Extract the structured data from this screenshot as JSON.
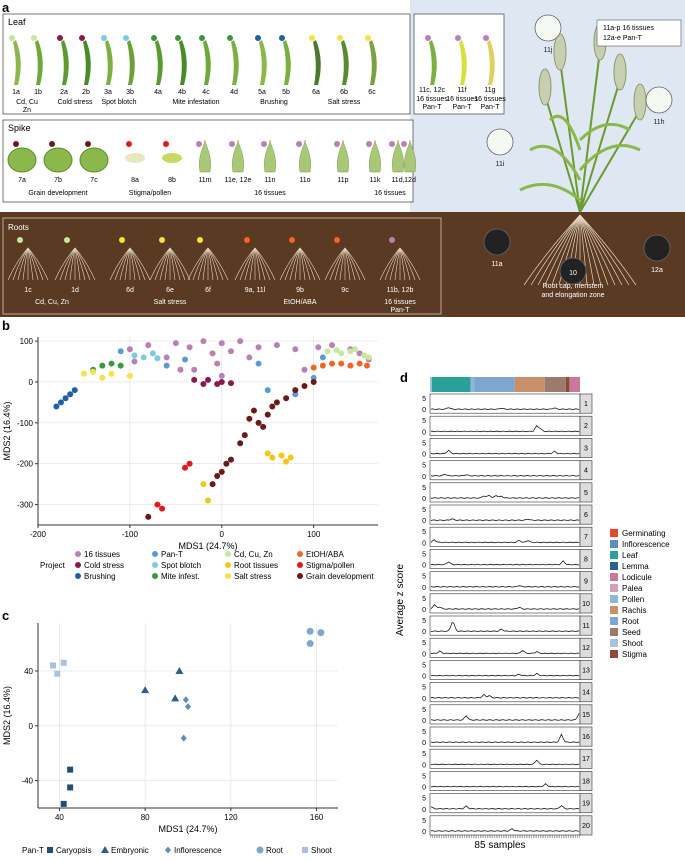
{
  "panel_a": {
    "letter": "a",
    "leaf": {
      "title": "Leaf",
      "sample_ids": [
        "1a",
        "1b",
        "2a",
        "2b",
        "3a",
        "3b",
        "4a",
        "4b",
        "4c",
        "4d",
        "5a",
        "5b",
        "6a",
        "6b",
        "6c"
      ],
      "groups": [
        "Cd, Cu\nZn",
        "Cold stress",
        "Spot blotch",
        "Mite infestation",
        "Brushing",
        "Salt stress"
      ],
      "pan_ids": [
        "11c, 12c",
        "11f",
        "11g"
      ],
      "pan_label": "16 tissues\nPan-T"
    },
    "spike": {
      "title": "Spike",
      "sample_ids": [
        "7a",
        "7b",
        "7c",
        "8a",
        "8b",
        "11m",
        "11e, 12e",
        "11n",
        "11o",
        "11p",
        "11k",
        "11d,",
        "12d"
      ],
      "groups": [
        "Grain development",
        "Stigma/pollen",
        "16 tissues",
        "16 tissues"
      ]
    },
    "roots": {
      "title": "Roots",
      "sample_ids": [
        "1c",
        "1d",
        "6d",
        "6e",
        "6f",
        "9a, 11l",
        "9b",
        "9c",
        "11b, 12b"
      ],
      "groups": [
        "Cd, Cu, Zn",
        "Salt stress",
        "EtOH/ABA",
        "16 tissues\nPan-T"
      ]
    },
    "plant": {
      "legend_lines": [
        "11a-p 16 tissues",
        "12a-e Pan-T"
      ],
      "ids": [
        "11j",
        "11h",
        "11i",
        "11a",
        "12a",
        "10"
      ],
      "zone": "Root cap, meristem\nand elongation zone"
    }
  },
  "panel_b": {
    "letter": "b",
    "legend_title": "Project",
    "legend": [
      "16 tissues",
      "Pan-T",
      "Cd, Cu, Zn",
      "EtOH/ABA",
      "Cold stress",
      "Spot blotch",
      "Root tissues",
      "Stigma/pollen",
      "Brushing",
      "Mite infest.",
      "Salt stress",
      "Grain development"
    ]
  },
  "panel_c": {
    "letter": "c",
    "legend_title": "Pan-T",
    "legend": [
      "Caryopsis",
      "Embryonic",
      "Inflorescence",
      "Root",
      "Shoot"
    ]
  },
  "panel_d": {
    "letter": "d",
    "legend": [
      "Germinating",
      "Inflorescence",
      "Leaf",
      "Lemma",
      "Lodicule",
      "Palea",
      "Pollen",
      "Rachis",
      "Root",
      "Seed",
      "Shoot",
      "Stigma"
    ],
    "ylabel": "Average z score",
    "xlabel": "85 samples",
    "row_ids": [
      "1",
      "2",
      "3",
      "4",
      "5",
      "6",
      "7",
      "8",
      "9",
      "10",
      "11",
      "12",
      "13",
      "14",
      "15",
      "16",
      "17",
      "18",
      "19",
      "20"
    ],
    "tick_labels": [
      "5",
      "0"
    ]
  },
  "colors": {
    "16 tissues": "#b980b8",
    "Pan-T": "#5b9bd5",
    "Cd, Cu, Zn": "#c8e6a0",
    "EtOH/ABA": "#f26522",
    "Cold stress": "#8b1a4a",
    "Spot blotch": "#7ec8e3",
    "Root tissues": "#f5c518",
    "Stigma/pollen": "#e31a1c",
    "Brushing": "#1f5fa8",
    "Mite infest.": "#3a9a3a",
    "Salt stress": "#f7e04a",
    "Grain development": "#6b1a1a",
    "Caryopsis": "#1f4e79",
    "Embryonic": "#2e5d8a",
    "Inflorescence": "#5b8fb9",
    "Root": "#7fa6cf",
    "Shoot": "#a9c3df",
    "Germinating": "#e8472a",
    "Leaf": "#2aa198",
    "Lemma": "#2c5f8a",
    "Lodicule": "#c97a9b",
    "Palea": "#d4a0b8",
    "Pollen": "#8fb8d8",
    "Rachis": "#c8906a",
    "Seed": "#9b7b6b",
    "Stigma": "#8b4a3a"
  },
  "chart_data": [
    {
      "type": "scatter",
      "panel": "b",
      "xlabel": "MDS1 (24.7%)",
      "ylabel": "MDS2 (16.4%)",
      "xlim": [
        -200,
        170
      ],
      "ylim": [
        -350,
        110
      ],
      "xticks": [
        -200,
        -100,
        0,
        100
      ],
      "yticks": [
        100,
        0,
        -100,
        -200,
        -300
      ],
      "series": [
        {
          "name": "16 tissues",
          "points": [
            [
              -100,
              80
            ],
            [
              -80,
              90
            ],
            [
              -60,
              60
            ],
            [
              -50,
              95
            ],
            [
              -35,
              85
            ],
            [
              -20,
              100
            ],
            [
              -10,
              70
            ],
            [
              0,
              95
            ],
            [
              10,
              75
            ],
            [
              20,
              100
            ],
            [
              30,
              60
            ],
            [
              -30,
              30
            ],
            [
              -5,
              45
            ],
            [
              40,
              85
            ],
            [
              60,
              90
            ],
            [
              80,
              80
            ],
            [
              90,
              30
            ],
            [
              105,
              85
            ],
            [
              120,
              90
            ],
            [
              140,
              80
            ],
            [
              150,
              70
            ],
            [
              160,
              55
            ],
            [
              -95,
              50
            ],
            [
              -45,
              30
            ],
            [
              0,
              15
            ]
          ]
        },
        {
          "name": "Pan-T",
          "points": [
            [
              -110,
              75
            ],
            [
              -60,
              40
            ],
            [
              -40,
              55
            ],
            [
              40,
              45
            ],
            [
              50,
              -20
            ],
            [
              80,
              -30
            ],
            [
              100,
              10
            ],
            [
              110,
              60
            ]
          ]
        },
        {
          "name": "Cd, Cu, Zn",
          "points": [
            [
              115,
              75
            ],
            [
              125,
              78
            ],
            [
              130,
              70
            ],
            [
              140,
              75
            ],
            [
              145,
              80
            ],
            [
              155,
              65
            ],
            [
              160,
              60
            ]
          ]
        },
        {
          "name": "EtOH/ABA",
          "points": [
            [
              100,
              35
            ],
            [
              110,
              40
            ],
            [
              120,
              45
            ],
            [
              130,
              45
            ],
            [
              140,
              40
            ],
            [
              150,
              45
            ],
            [
              158,
              40
            ]
          ]
        },
        {
          "name": "Cold stress",
          "points": [
            [
              -30,
              5
            ],
            [
              -20,
              -5
            ],
            [
              -15,
              5
            ],
            [
              -5,
              -5
            ],
            [
              0,
              0
            ],
            [
              10,
              -3
            ]
          ]
        },
        {
          "name": "Spot blotch",
          "points": [
            [
              -95,
              65
            ],
            [
              -85,
              60
            ],
            [
              -75,
              70
            ],
            [
              -70,
              58
            ]
          ]
        },
        {
          "name": "Root tissues",
          "points": [
            [
              50,
              -175
            ],
            [
              55,
              -185
            ],
            [
              65,
              -180
            ],
            [
              70,
              -195
            ],
            [
              75,
              -185
            ],
            [
              -15,
              -290
            ],
            [
              -20,
              -250
            ]
          ]
        },
        {
          "name": "Stigma/pollen",
          "points": [
            [
              -70,
              -300
            ],
            [
              -65,
              -310
            ],
            [
              -40,
              -210
            ],
            [
              -35,
              -200
            ]
          ]
        },
        {
          "name": "Brushing",
          "points": [
            [
              -180,
              -60
            ],
            [
              -175,
              -50
            ],
            [
              -170,
              -40
            ],
            [
              -165,
              -30
            ],
            [
              -160,
              -20
            ]
          ]
        },
        {
          "name": "Mite infest.",
          "points": [
            [
              -140,
              30
            ],
            [
              -130,
              40
            ],
            [
              -120,
              45
            ],
            [
              -110,
              40
            ]
          ]
        },
        {
          "name": "Salt stress",
          "points": [
            [
              -150,
              20
            ],
            [
              -140,
              25
            ],
            [
              -130,
              10
            ],
            [
              -120,
              20
            ],
            [
              -100,
              15
            ]
          ]
        },
        {
          "name": "Grain development",
          "points": [
            [
              -80,
              -330
            ],
            [
              -10,
              -250
            ],
            [
              -5,
              -230
            ],
            [
              0,
              -220
            ],
            [
              5,
              -200
            ],
            [
              10,
              -190
            ],
            [
              20,
              -150
            ],
            [
              25,
              -130
            ],
            [
              30,
              -90
            ],
            [
              35,
              -70
            ],
            [
              40,
              -100
            ],
            [
              45,
              -110
            ],
            [
              50,
              -80
            ],
            [
              55,
              -60
            ],
            [
              60,
              -50
            ],
            [
              70,
              -40
            ],
            [
              80,
              -20
            ],
            [
              90,
              -10
            ],
            [
              100,
              0
            ]
          ]
        }
      ]
    },
    {
      "type": "scatter",
      "panel": "c",
      "xlabel": "MDS1 (24.7%)",
      "ylabel": "MDS2 (16.4%)",
      "xlim": [
        30,
        170
      ],
      "ylim": [
        -60,
        75
      ],
      "xticks": [
        40,
        80,
        120,
        160
      ],
      "yticks": [
        40,
        0,
        -40
      ],
      "series": [
        {
          "name": "Caryopsis",
          "marker": "square",
          "points": [
            [
              45,
              -32
            ],
            [
              45,
              -45
            ],
            [
              42,
              -57
            ]
          ]
        },
        {
          "name": "Embryonic",
          "marker": "triangle",
          "points": [
            [
              80,
              26
            ],
            [
              96,
              40
            ],
            [
              94,
              20
            ]
          ]
        },
        {
          "name": "Inflorescence",
          "marker": "diamond",
          "points": [
            [
              99,
              19
            ],
            [
              100,
              14
            ],
            [
              98,
              -9
            ]
          ]
        },
        {
          "name": "Root",
          "marker": "circle",
          "points": [
            [
              157,
              69
            ],
            [
              162,
              68
            ],
            [
              157,
              60
            ]
          ]
        },
        {
          "name": "Shoot",
          "marker": "square",
          "points": [
            [
              37,
              44
            ],
            [
              42,
              46
            ],
            [
              39,
              38
            ]
          ]
        }
      ]
    },
    {
      "type": "line",
      "panel": "d",
      "xlabel": "85 samples",
      "ylabel": "Average z score",
      "n_samples": 85,
      "ylim": [
        -1,
        5
      ],
      "sample_tissue_blocks": [
        {
          "tissue": "Shoot",
          "count": 1
        },
        {
          "tissue": "Leaf",
          "count": 22
        },
        {
          "tissue": "Pollen",
          "count": 2
        },
        {
          "tissue": "Root",
          "count": 23
        },
        {
          "tissue": "Rachis",
          "count": 17
        },
        {
          "tissue": "Seed",
          "count": 12
        },
        {
          "tissue": "Stigma",
          "count": 2
        },
        {
          "tissue": "Lodicule",
          "count": 6
        }
      ],
      "peaks": [
        {
          "row": 1,
          "at": [
            10,
            40,
            70
          ],
          "h": [
            0.8,
            0.5,
            0.6
          ]
        },
        {
          "row": 2,
          "at": [
            60,
            62
          ],
          "h": [
            2.5,
            1.2
          ]
        },
        {
          "row": 3,
          "at": [
            10,
            70
          ],
          "h": [
            1.5,
            1.0
          ]
        },
        {
          "row": 4,
          "at": [
            8,
            20
          ],
          "h": [
            0.7,
            0.5
          ]
        },
        {
          "row": 5,
          "at": [
            30,
            33,
            37,
            40
          ],
          "h": [
            1.0,
            1.3,
            1.2,
            0.8
          ]
        },
        {
          "row": 6,
          "at": [
            12,
            55
          ],
          "h": [
            0.6,
            0.5
          ]
        },
        {
          "row": 7,
          "at": [
            2,
            50,
            55
          ],
          "h": [
            1.2,
            0.9,
            0.9
          ]
        },
        {
          "row": 8,
          "at": [
            10,
            75
          ],
          "h": [
            1.3,
            1.6
          ]
        },
        {
          "row": 9,
          "at": [
            50
          ],
          "h": [
            0.6
          ]
        },
        {
          "row": 10,
          "at": [
            2,
            5,
            50
          ],
          "h": [
            2.0,
            1.0,
            0.8
          ]
        },
        {
          "row": 11,
          "at": [
            12,
            13,
            40
          ],
          "h": [
            3.0,
            2.0,
            0.9
          ]
        },
        {
          "row": 12,
          "at": [
            5,
            52,
            60
          ],
          "h": [
            1.0,
            1.4,
            0.8
          ]
        },
        {
          "row": 13,
          "at": [
            50,
            60
          ],
          "h": [
            0.6,
            0.9
          ]
        },
        {
          "row": 14,
          "at": [
            30,
            33
          ],
          "h": [
            1.4,
            1.0
          ]
        },
        {
          "row": 15,
          "at": [
            20,
            84
          ],
          "h": [
            2.0,
            3.0
          ]
        },
        {
          "row": 16,
          "at": [
            74
          ],
          "h": [
            3.5
          ]
        },
        {
          "row": 17,
          "at": [
            60
          ],
          "h": [
            2.0
          ]
        },
        {
          "row": 18,
          "at": [
            65
          ],
          "h": [
            1.2
          ]
        },
        {
          "row": 19,
          "at": [
            0,
            20,
            74
          ],
          "h": [
            1.0,
            1.2,
            1.5
          ]
        },
        {
          "row": 20,
          "at": [
            46
          ],
          "h": [
            1.0
          ]
        }
      ]
    }
  ]
}
